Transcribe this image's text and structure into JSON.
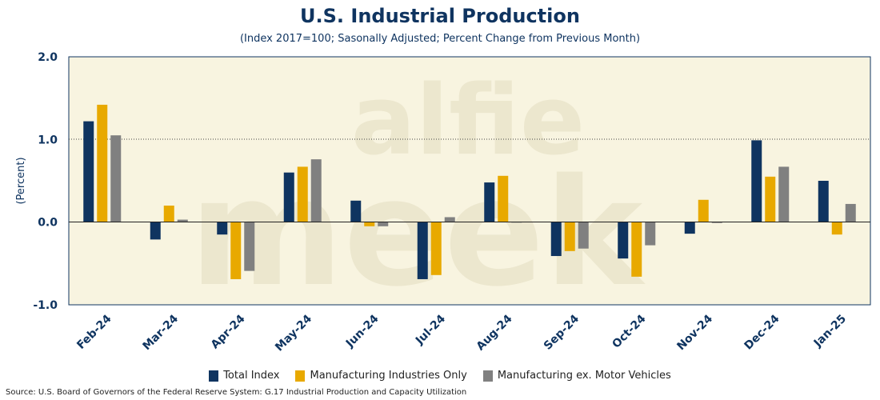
{
  "chart_data": {
    "type": "bar",
    "title": "U.S. Industrial Production",
    "subtitle": "(Index 2017=100; Sasonally Adjusted; Percent Change from Previous Month)",
    "ylabel": "(Percent)",
    "xlabel": "",
    "ylim": [
      -1.0,
      2.0
    ],
    "yticks": [
      "2.0",
      "1.0",
      "0.0",
      "-1.0"
    ],
    "ytick_values": [
      2.0,
      1.0,
      0.0,
      -1.0
    ],
    "gridline_at": 1.0,
    "categories": [
      "Feb-24",
      "Mar-24",
      "Apr-24",
      "May-24",
      "Jun-24",
      "Jul-24",
      "Aug-24",
      "Sep-24",
      "Oct-24",
      "Nov-24",
      "Dec-24",
      "Jan-25"
    ],
    "series": [
      {
        "name": "Total Index",
        "color": "#0f3460",
        "values": [
          1.22,
          -0.21,
          -0.15,
          0.6,
          0.26,
          -0.69,
          0.48,
          -0.41,
          -0.44,
          -0.14,
          0.99,
          0.5
        ]
      },
      {
        "name": "Manufacturing Industries Only",
        "color": "#e8a900",
        "values": [
          1.42,
          0.2,
          -0.69,
          0.67,
          -0.05,
          -0.64,
          0.56,
          -0.35,
          -0.66,
          0.27,
          0.55,
          -0.15
        ]
      },
      {
        "name": "Manufacturing ex. Motor Vehicles",
        "color": "#808080",
        "values": [
          1.05,
          0.03,
          -0.59,
          0.76,
          -0.05,
          0.06,
          0.0,
          -0.32,
          -0.28,
          -0.01,
          0.67,
          0.22
        ]
      }
    ],
    "legend_position": "bottom",
    "grid": false,
    "watermark": [
      "alfie",
      "meek"
    ]
  },
  "source": "Source: U.S. Board of Governors of the Federal Reserve System: G.17 Industrial Production and Capacity Utilization"
}
